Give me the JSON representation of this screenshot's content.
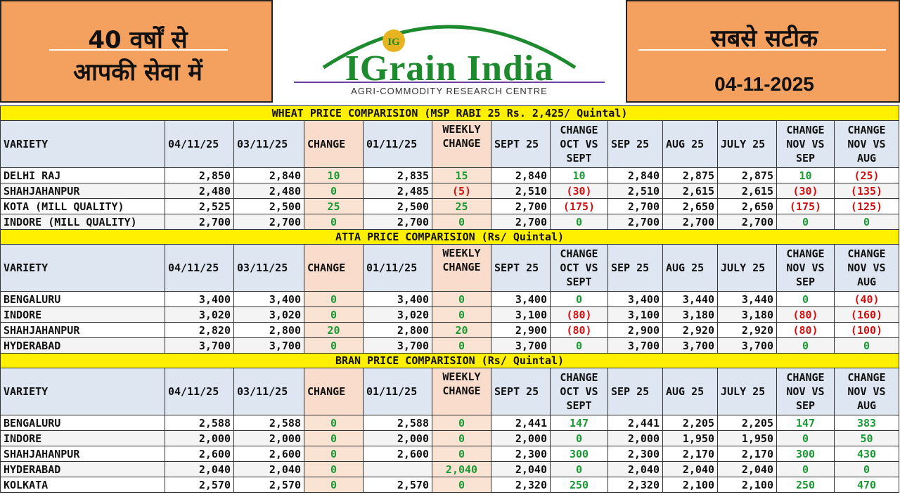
{
  "header": {
    "left_line1": "40 वर्षों से",
    "left_line2": "आपकी सेवा में",
    "brand": "IGrain India",
    "logo_letters": "IG",
    "tagline": "AGRI-COMMODITY RESEARCH CENTRE",
    "right_line1": "सबसे सटीक",
    "date": "04-11-2025"
  },
  "colors": {
    "header_bg": "#f4a05f",
    "title_bg": "#ffef00",
    "header_row_bg": "#dde6f1",
    "change_bg": "#fbe3d4",
    "positive": "#1a9a35",
    "negative": "#d01010",
    "brand": "#1d8a2e"
  },
  "columns": {
    "variety": "VARIETY",
    "d1": "04/11/25",
    "d2": "03/11/25",
    "change": "CHANGE",
    "d3": "01/11/25",
    "weekly_change": "WEEKLY CHANGE",
    "sept": "SEPT 25",
    "change_oct_sept": "CHANGE OCT VS SEPT",
    "sep": "SEP 25",
    "aug": "AUG 25",
    "july": "JULY 25",
    "change_nov_sep": "CHANGE NOV VS SEP",
    "change_nov_aug": "CHANGE NOV VS AUG"
  },
  "sections": [
    {
      "title": "WHEAT PRICE COMPARISION (MSP RABI 25 Rs. 2,425/ Quintal)",
      "rows": [
        [
          "DELHI RAJ",
          "2,850",
          "2,840",
          "10",
          "2,835",
          "15",
          "2,840",
          "10",
          "2,840",
          "2,875",
          "2,875",
          "10",
          "(25)"
        ],
        [
          "SHAHJAHANPUR",
          "2,480",
          "2,480",
          "0",
          "2,485",
          "(5)",
          "2,510",
          "(30)",
          "2,510",
          "2,615",
          "2,615",
          "(30)",
          "(135)"
        ],
        [
          "KOTA (MILL QUALITY)",
          "2,525",
          "2,500",
          "25",
          "2,500",
          "25",
          "2,700",
          "(175)",
          "2,700",
          "2,650",
          "2,650",
          "(175)",
          "(125)"
        ],
        [
          "INDORE (MILL QUALITY)",
          "2,700",
          "2,700",
          "0",
          "2,700",
          "0",
          "2,700",
          "0",
          "2,700",
          "2,700",
          "2,700",
          "0",
          "0"
        ]
      ]
    },
    {
      "title": "ATTA PRICE COMPARISION (Rs/ Quintal)",
      "rows": [
        [
          "BENGALURU",
          "3,400",
          "3,400",
          "0",
          "3,400",
          "0",
          "3,400",
          "0",
          "3,400",
          "3,440",
          "3,440",
          "0",
          "(40)"
        ],
        [
          "INDORE",
          "3,020",
          "3,020",
          "0",
          "3,020",
          "0",
          "3,100",
          "(80)",
          "3,100",
          "3,180",
          "3,180",
          "(80)",
          "(160)"
        ],
        [
          "SHAHJAHANPUR",
          "2,820",
          "2,800",
          "20",
          "2,800",
          "20",
          "2,900",
          "(80)",
          "2,900",
          "2,920",
          "2,920",
          "(80)",
          "(100)"
        ],
        [
          "HYDERABAD",
          "3,700",
          "3,700",
          "0",
          "3,700",
          "0",
          "3,700",
          "0",
          "3,700",
          "3,700",
          "3,700",
          "0",
          "0"
        ]
      ]
    },
    {
      "title": "BRAN PRICE COMPARISION (Rs/ Quintal)",
      "rows": [
        [
          "BENGALURU",
          "2,588",
          "2,588",
          "0",
          "2,588",
          "0",
          "2,441",
          "147",
          "2,441",
          "2,205",
          "2,205",
          "147",
          "383"
        ],
        [
          "INDORE",
          "2,000",
          "2,000",
          "0",
          "2,000",
          "0",
          "2,000",
          "0",
          "2,000",
          "1,950",
          "1,950",
          "0",
          "50"
        ],
        [
          "SHAHJAHANPUR",
          "2,600",
          "2,600",
          "0",
          "2,600",
          "0",
          "2,300",
          "300",
          "2,300",
          "2,170",
          "2,170",
          "300",
          "430"
        ],
        [
          "HYDERABAD",
          "2,040",
          "2,040",
          "0",
          "",
          "2,040",
          "2,040",
          "0",
          "2,040",
          "2,040",
          "2,040",
          "0",
          "0"
        ],
        [
          "KOLKATA",
          "2,570",
          "2,570",
          "0",
          "2,570",
          "0",
          "2,320",
          "250",
          "2,320",
          "2,100",
          "2,100",
          "250",
          "470"
        ]
      ]
    }
  ]
}
